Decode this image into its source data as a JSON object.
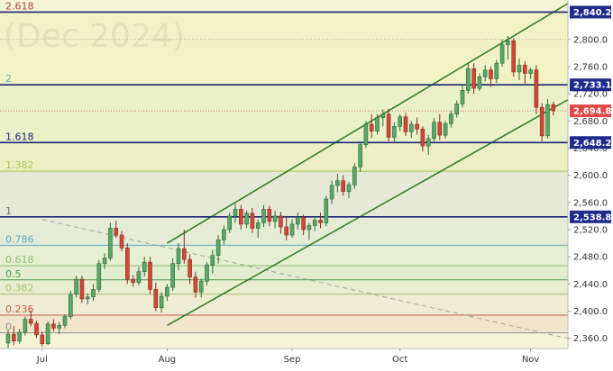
{
  "chart_data": {
    "type": "candlestick",
    "watermark": "(Dec 2024)",
    "y_range": [
      2345,
      2858
    ],
    "y_ticks": [
      "2,800.0",
      "2,760.0",
      "2,720.0",
      "2,680.0",
      "2,640.0",
      "2,600.0",
      "2,560.0",
      "2,520.0",
      "2,480.0",
      "2,440.0",
      "2,400.0",
      "2,360.0"
    ],
    "x_labels": [
      {
        "label": "Jul",
        "index": 6
      },
      {
        "label": "Aug",
        "index": 28
      },
      {
        "label": "Sep",
        "index": 50
      },
      {
        "label": "Oct",
        "index": 69
      },
      {
        "label": "Nov",
        "index": 92
      }
    ],
    "candles": [
      [
        2353,
        2372,
        2345,
        2366
      ],
      [
        2366,
        2378,
        2350,
        2356
      ],
      [
        2356,
        2374,
        2352,
        2369
      ],
      [
        2369,
        2392,
        2364,
        2388
      ],
      [
        2388,
        2401,
        2378,
        2382
      ],
      [
        2382,
        2386,
        2360,
        2365
      ],
      [
        2365,
        2370,
        2348,
        2352
      ],
      [
        2352,
        2385,
        2350,
        2381
      ],
      [
        2381,
        2388,
        2370,
        2375
      ],
      [
        2375,
        2384,
        2366,
        2379
      ],
      [
        2379,
        2395,
        2375,
        2392
      ],
      [
        2392,
        2430,
        2388,
        2425
      ],
      [
        2425,
        2452,
        2420,
        2447
      ],
      [
        2447,
        2452,
        2412,
        2418
      ],
      [
        2418,
        2426,
        2410,
        2421
      ],
      [
        2421,
        2440,
        2415,
        2432
      ],
      [
        2432,
        2475,
        2428,
        2470
      ],
      [
        2470,
        2485,
        2462,
        2478
      ],
      [
        2478,
        2530,
        2474,
        2522
      ],
      [
        2522,
        2533,
        2508,
        2512
      ],
      [
        2512,
        2518,
        2488,
        2493
      ],
      [
        2493,
        2500,
        2440,
        2447
      ],
      [
        2447,
        2453,
        2436,
        2442
      ],
      [
        2442,
        2465,
        2438,
        2458
      ],
      [
        2458,
        2480,
        2451,
        2472
      ],
      [
        2472,
        2480,
        2425,
        2432
      ],
      [
        2432,
        2442,
        2400,
        2405
      ],
      [
        2405,
        2428,
        2398,
        2422
      ],
      [
        2422,
        2440,
        2415,
        2435
      ],
      [
        2435,
        2478,
        2430,
        2470
      ],
      [
        2470,
        2500,
        2460,
        2492
      ],
      [
        2492,
        2520,
        2470,
        2476
      ],
      [
        2476,
        2484,
        2440,
        2450
      ],
      [
        2450,
        2458,
        2420,
        2428
      ],
      [
        2428,
        2448,
        2420,
        2444
      ],
      [
        2444,
        2472,
        2438,
        2468
      ],
      [
        2468,
        2490,
        2455,
        2482
      ],
      [
        2482,
        2512,
        2470,
        2505
      ],
      [
        2505,
        2526,
        2498,
        2520
      ],
      [
        2520,
        2545,
        2515,
        2540
      ],
      [
        2540,
        2558,
        2530,
        2550
      ],
      [
        2550,
        2556,
        2520,
        2528
      ],
      [
        2528,
        2548,
        2522,
        2544
      ],
      [
        2544,
        2552,
        2515,
        2522
      ],
      [
        2522,
        2535,
        2508,
        2530
      ],
      [
        2530,
        2556,
        2524,
        2550
      ],
      [
        2550,
        2555,
        2525,
        2532
      ],
      [
        2532,
        2548,
        2522,
        2540
      ],
      [
        2540,
        2546,
        2514,
        2524
      ],
      [
        2524,
        2540,
        2504,
        2512
      ],
      [
        2512,
        2535,
        2508,
        2528
      ],
      [
        2528,
        2545,
        2520,
        2538
      ],
      [
        2538,
        2542,
        2512,
        2520
      ],
      [
        2520,
        2530,
        2505,
        2526
      ],
      [
        2526,
        2540,
        2518,
        2534
      ],
      [
        2534,
        2545,
        2522,
        2530
      ],
      [
        2530,
        2570,
        2525,
        2565
      ],
      [
        2565,
        2592,
        2558,
        2585
      ],
      [
        2585,
        2602,
        2575,
        2592
      ],
      [
        2592,
        2600,
        2570,
        2576
      ],
      [
        2576,
        2590,
        2566,
        2586
      ],
      [
        2586,
        2618,
        2580,
        2612
      ],
      [
        2612,
        2650,
        2605,
        2645
      ],
      [
        2645,
        2680,
        2640,
        2675
      ],
      [
        2675,
        2690,
        2655,
        2665
      ],
      [
        2665,
        2690,
        2660,
        2685
      ],
      [
        2685,
        2697,
        2672,
        2690
      ],
      [
        2690,
        2698,
        2650,
        2656
      ],
      [
        2656,
        2678,
        2648,
        2672
      ],
      [
        2672,
        2690,
        2665,
        2686
      ],
      [
        2686,
        2692,
        2658,
        2664
      ],
      [
        2664,
        2680,
        2655,
        2675
      ],
      [
        2675,
        2685,
        2660,
        2668
      ],
      [
        2668,
        2672,
        2635,
        2643
      ],
      [
        2643,
        2660,
        2630,
        2654
      ],
      [
        2654,
        2684,
        2650,
        2678
      ],
      [
        2678,
        2690,
        2652,
        2659
      ],
      [
        2659,
        2680,
        2654,
        2676
      ],
      [
        2676,
        2695,
        2670,
        2690
      ],
      [
        2690,
        2710,
        2685,
        2705
      ],
      [
        2705,
        2732,
        2700,
        2725
      ],
      [
        2725,
        2764,
        2720,
        2757
      ],
      [
        2757,
        2765,
        2720,
        2728
      ],
      [
        2728,
        2750,
        2724,
        2745
      ],
      [
        2745,
        2762,
        2738,
        2755
      ],
      [
        2755,
        2760,
        2730,
        2742
      ],
      [
        2742,
        2770,
        2736,
        2765
      ],
      [
        2765,
        2800,
        2760,
        2792
      ],
      [
        2792,
        2805,
        2770,
        2798
      ],
      [
        2798,
        2802,
        2745,
        2752
      ],
      [
        2752,
        2772,
        2740,
        2762
      ],
      [
        2762,
        2768,
        2735,
        2750
      ],
      [
        2750,
        2758,
        2742,
        2755
      ],
      [
        2755,
        2762,
        2690,
        2700
      ],
      [
        2700,
        2706,
        2650,
        2658
      ],
      [
        2658,
        2712,
        2654,
        2704
      ],
      [
        2704,
        2708,
        2688,
        2694.8
      ]
    ],
    "fib_levels": [
      {
        "label": "2.618",
        "value": 2840.2,
        "color": "#b8443a",
        "lw": 1,
        "dash": ""
      },
      {
        "label": "2",
        "value": 2733.1,
        "color": "#66b8a6",
        "lw": 1,
        "dash": ""
      },
      {
        "label": "1.618",
        "value": 2648.2,
        "color": "#202080",
        "lw": 1,
        "dash": ""
      },
      {
        "label": "1.382",
        "value": 2606,
        "color": "#a8c850",
        "lw": 1,
        "dash": ""
      },
      {
        "label": "1",
        "value": 2538.8,
        "color": "#6e6e6e",
        "lw": 1,
        "dash": ""
      },
      {
        "label": "0.786",
        "value": 2497,
        "color": "#5aa8c8",
        "lw": 1,
        "dash": ""
      },
      {
        "label": "0.618",
        "value": 2467,
        "color": "#8cc070",
        "lw": 1,
        "dash": ""
      },
      {
        "label": "0.5",
        "value": 2446,
        "color": "#4a9a4a",
        "lw": 1,
        "dash": ""
      },
      {
        "label": "0.382",
        "value": 2425,
        "color": "#aac070",
        "lw": 1,
        "dash": ""
      },
      {
        "label": "0.236",
        "value": 2394,
        "color": "#c85a4a",
        "lw": 1,
        "dash": ""
      },
      {
        "label": "0",
        "value": 2368,
        "color": "#909090",
        "lw": 1,
        "dash": ""
      }
    ],
    "fib_bands": [
      {
        "from": 2733.1,
        "to": 2840.2,
        "color": "#f1f2c6"
      },
      {
        "from": 2648.2,
        "to": 2733.1,
        "color": "#eaf0c8"
      },
      {
        "from": 2606,
        "to": 2648.2,
        "color": "#ecefc4"
      },
      {
        "from": 2538.8,
        "to": 2606,
        "color": "#e6e8d8"
      },
      {
        "from": 2497,
        "to": 2538.8,
        "color": "#e5ecd6"
      },
      {
        "from": 2467,
        "to": 2497,
        "color": "#e6efd2"
      },
      {
        "from": 2446,
        "to": 2467,
        "color": "#e3edd0"
      },
      {
        "from": 2425,
        "to": 2446,
        "color": "#e8eecf"
      },
      {
        "from": 2394,
        "to": 2425,
        "color": "#eeecd2"
      },
      {
        "from": 2368,
        "to": 2394,
        "color": "#f1e6cc"
      }
    ],
    "horizontal_levels": [
      {
        "value": 2840.2,
        "label": "2,840.2"
      },
      {
        "value": 2733.1,
        "label": "2,733.1"
      },
      {
        "value": 2648.2,
        "label": "2,648.2"
      },
      {
        "value": 2538.8,
        "label": "2,538.8"
      }
    ],
    "last_price": {
      "value": 2694.8,
      "label": "2,694.8"
    },
    "dotted_levels": [
      2800,
      2694.8
    ],
    "channel": {
      "color": "#2a7a1e",
      "upper": [
        [
          28,
          2500
        ],
        [
          100,
          2860
        ]
      ],
      "lower": [
        [
          28,
          2379
        ],
        [
          100,
          2718
        ]
      ]
    },
    "diagonal_dashed": {
      "color": "#a0a0a0",
      "from": [
        6,
        2535
      ],
      "to": [
        100,
        2357
      ]
    },
    "colors": {
      "up": "#5aa868",
      "down": "#d04838",
      "up_border": "#2a6a38",
      "down_border": "#8a2a20",
      "badge": "#1e2a8c",
      "last_badge": "#e04848"
    }
  }
}
